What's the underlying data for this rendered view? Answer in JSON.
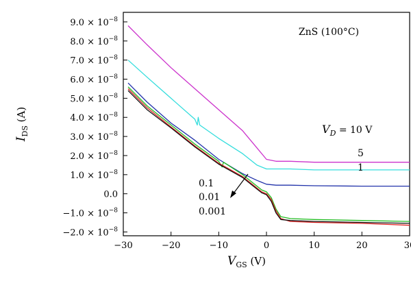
{
  "chart_data": {
    "type": "line",
    "title": "",
    "xlabel_main": "V",
    "xlabel_sub": "GS",
    "xlabel_unit": " (V)",
    "ylabel_main": "I",
    "ylabel_sub": "DS",
    "ylabel_unit": " (A)",
    "xlim": [
      -30,
      30
    ],
    "ylim": [
      -2.2e-08,
      9.5e-08
    ],
    "x_ticks": [
      -30,
      -20,
      -10,
      0,
      10,
      20,
      30
    ],
    "x_tick_labels": [
      "−30",
      "−20",
      "−10",
      "0",
      "10",
      "20",
      "30"
    ],
    "y_ticks": [
      -2e-08,
      -1e-08,
      0,
      1e-08,
      2e-08,
      3e-08,
      4e-08,
      5e-08,
      6e-08,
      7e-08,
      8e-08,
      9e-08
    ],
    "y_tick_mantissas": [
      "−2.0",
      "−1.0",
      "0.0",
      "1.0",
      "2.0",
      "3.0",
      "4.0",
      "5.0",
      "6.0",
      "7.0",
      "8.0",
      "9.0"
    ],
    "y_tick_base": "× 10",
    "y_tick_exponent": "−8",
    "grid": false,
    "annotations": {
      "material": "ZnS (100°C)",
      "vd_label_main": "V",
      "vd_label_sub": "D",
      "vd_label_value": " = 10 V",
      "label_5": "5",
      "label_1": "1",
      "label_01": "0.1",
      "label_001": "0.01",
      "label_0001": "0.001"
    },
    "series": [
      {
        "name": "10",
        "color": "#cc33cc",
        "x": [
          -29,
          -25,
          -20,
          -15,
          -10,
          -5,
          -2,
          0,
          2,
          5,
          10,
          15,
          20,
          25,
          30
        ],
        "y": [
          8.8e-08,
          7.8e-08,
          6.6e-08,
          5.5e-08,
          4.4e-08,
          3.3e-08,
          2.4e-08,
          1.8e-08,
          1.7e-08,
          1.7e-08,
          1.65e-08,
          1.65e-08,
          1.65e-08,
          1.65e-08,
          1.65e-08
        ]
      },
      {
        "name": "5",
        "color": "#33dddd",
        "x": [
          -29,
          -25,
          -20,
          -15,
          -14.5,
          -14.3,
          -14,
          -10,
          -5,
          -2,
          0,
          2,
          5,
          10,
          20,
          30
        ],
        "y": [
          7e-08,
          6.1e-08,
          5e-08,
          3.9e-08,
          3.6e-08,
          4e-08,
          3.6e-08,
          2.9e-08,
          2.1e-08,
          1.5e-08,
          1.3e-08,
          1.3e-08,
          1.3e-08,
          1.25e-08,
          1.25e-08,
          1.25e-08
        ]
      },
      {
        "name": "1",
        "color": "#2233aa",
        "x": [
          -29,
          -25,
          -20,
          -15,
          -10,
          -5,
          -2,
          -1,
          0,
          2,
          5,
          10,
          20,
          30
        ],
        "y": [
          5.8e-08,
          4.8e-08,
          3.7e-08,
          2.8e-08,
          1.8e-08,
          1.05e-08,
          7e-09,
          6e-09,
          5e-09,
          4.5e-09,
          4.5e-09,
          4.2e-09,
          4e-09,
          4e-09
        ]
      },
      {
        "name": "0.1",
        "color": "#22bb22",
        "x": [
          -29,
          -25,
          -20,
          -15,
          -10,
          -9.3,
          -9,
          -5,
          -3,
          -1,
          0,
          1,
          2,
          3,
          5,
          10,
          20,
          30
        ],
        "y": [
          5.6e-08,
          4.6e-08,
          3.6e-08,
          2.6e-08,
          1.7e-08,
          1.4e-08,
          1.65e-08,
          1e-08,
          6e-09,
          2e-09,
          1e-09,
          -2e-09,
          -8e-09,
          -1.2e-08,
          -1.3e-08,
          -1.35e-08,
          -1.4e-08,
          -1.45e-08
        ]
      },
      {
        "name": "0.01",
        "color": "#dd2222",
        "x": [
          -29,
          -25,
          -20,
          -15,
          -10,
          -5,
          -3,
          -1,
          0,
          1,
          2,
          3,
          5,
          10,
          20,
          30
        ],
        "y": [
          5.5e-08,
          4.5e-08,
          3.5e-08,
          2.5e-08,
          1.6e-08,
          9e-09,
          5e-09,
          1e-09,
          0.0,
          -3e-09,
          -9e-09,
          -1.3e-08,
          -1.45e-08,
          -1.5e-08,
          -1.55e-08,
          -1.65e-08
        ]
      },
      {
        "name": "0.001",
        "color": "#111111",
        "x": [
          -29,
          -25,
          -20,
          -15,
          -10,
          -5,
          -3,
          -1,
          0,
          1,
          2,
          3,
          5,
          10,
          20,
          30
        ],
        "y": [
          5.4e-08,
          4.4e-08,
          3.45e-08,
          2.45e-08,
          1.55e-08,
          8.5e-09,
          4.5e-09,
          5e-10,
          -5e-10,
          -4e-09,
          -1e-08,
          -1.35e-08,
          -1.4e-08,
          -1.45e-08,
          -1.5e-08,
          -1.55e-08
        ]
      }
    ]
  }
}
